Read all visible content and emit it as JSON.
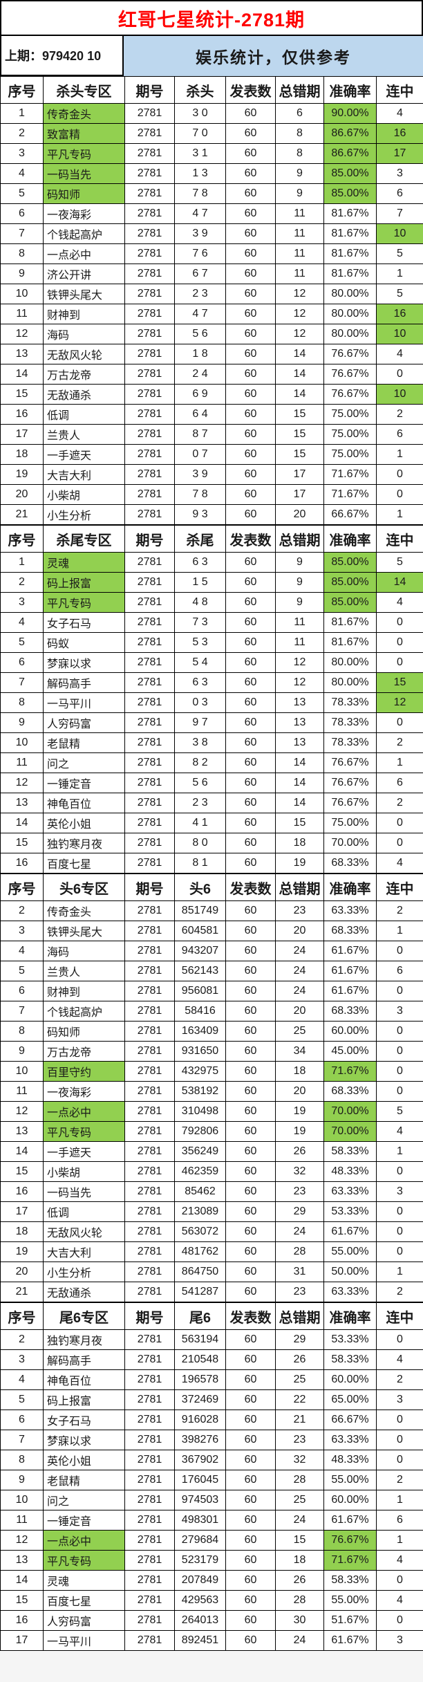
{
  "title": "红哥七星统计-2781期",
  "subheader": {
    "last_period": "上期：979420 10",
    "notice": "娱乐统计，仅供参考"
  },
  "colors": {
    "title_red": "#ff0000",
    "notice_blue": "#bdd7ee",
    "highlight_green": "#92d050",
    "border_black": "#000000"
  },
  "row_flags_legend": "flags string in row index 8: n = zone name cell green, a = accuracy cell green, s = streak cell green",
  "sections": [
    {
      "zone": "杀头专区",
      "headers": [
        "序号",
        "杀头专区",
        "期号",
        "杀头",
        "发表数",
        "总错期",
        "准确率",
        "连中"
      ],
      "rows": [
        [
          "1",
          "传奇金头",
          "2781",
          "3 0",
          "60",
          "6",
          "90.00%",
          "4",
          "na"
        ],
        [
          "2",
          "致富精",
          "2781",
          "7 0",
          "60",
          "8",
          "86.67%",
          "16",
          "nas"
        ],
        [
          "3",
          "平凡专码",
          "2781",
          "3 1",
          "60",
          "8",
          "86.67%",
          "17",
          "nas"
        ],
        [
          "4",
          "一码当先",
          "2781",
          "1 3",
          "60",
          "9",
          "85.00%",
          "3",
          "na"
        ],
        [
          "5",
          "码知师",
          "2781",
          "7 8",
          "60",
          "9",
          "85.00%",
          "6",
          "na"
        ],
        [
          "6",
          "一夜海彩",
          "2781",
          "4 7",
          "60",
          "11",
          "81.67%",
          "7",
          ""
        ],
        [
          "7",
          "个钱起高炉",
          "2781",
          "3 9",
          "60",
          "11",
          "81.67%",
          "10",
          "s"
        ],
        [
          "8",
          "一点必中",
          "2781",
          "7 6",
          "60",
          "11",
          "81.67%",
          "5",
          ""
        ],
        [
          "9",
          "济公开讲",
          "2781",
          "6 7",
          "60",
          "11",
          "81.67%",
          "1",
          ""
        ],
        [
          "10",
          "铁钾头尾大",
          "2781",
          "2 3",
          "60",
          "12",
          "80.00%",
          "5",
          ""
        ],
        [
          "11",
          "财神到",
          "2781",
          "4 7",
          "60",
          "12",
          "80.00%",
          "16",
          "s"
        ],
        [
          "12",
          "海码",
          "2781",
          "5 6",
          "60",
          "12",
          "80.00%",
          "10",
          "s"
        ],
        [
          "13",
          "无敌风火轮",
          "2781",
          "1 8",
          "60",
          "14",
          "76.67%",
          "4",
          ""
        ],
        [
          "14",
          "万古龙帝",
          "2781",
          "2 4",
          "60",
          "14",
          "76.67%",
          "0",
          ""
        ],
        [
          "15",
          "无敌通杀",
          "2781",
          "6 9",
          "60",
          "14",
          "76.67%",
          "10",
          "s"
        ],
        [
          "16",
          "低调",
          "2781",
          "6 4",
          "60",
          "15",
          "75.00%",
          "2",
          ""
        ],
        [
          "17",
          "兰贵人",
          "2781",
          "8 7",
          "60",
          "15",
          "75.00%",
          "6",
          ""
        ],
        [
          "18",
          "一手遮天",
          "2781",
          "0 7",
          "60",
          "15",
          "75.00%",
          "1",
          ""
        ],
        [
          "19",
          "大吉大利",
          "2781",
          "3 9",
          "60",
          "17",
          "71.67%",
          "0",
          ""
        ],
        [
          "20",
          "小柴胡",
          "2781",
          "7 8",
          "60",
          "17",
          "71.67%",
          "0",
          ""
        ],
        [
          "21",
          "小生分析",
          "2781",
          "9 3",
          "60",
          "20",
          "66.67%",
          "1",
          ""
        ]
      ]
    },
    {
      "zone": "杀尾专区",
      "headers": [
        "序号",
        "杀尾专区",
        "期号",
        "杀尾",
        "发表数",
        "总错期",
        "准确率",
        "连中"
      ],
      "rows": [
        [
          "1",
          "灵魂",
          "2781",
          "6 3",
          "60",
          "9",
          "85.00%",
          "5",
          "na"
        ],
        [
          "2",
          "码上报富",
          "2781",
          "1 5",
          "60",
          "9",
          "85.00%",
          "14",
          "nas"
        ],
        [
          "3",
          "平凡专码",
          "2781",
          "4 8",
          "60",
          "9",
          "85.00%",
          "4",
          "na"
        ],
        [
          "4",
          "女子石马",
          "2781",
          "7 3",
          "60",
          "11",
          "81.67%",
          "0",
          ""
        ],
        [
          "5",
          "码蚁",
          "2781",
          "5 3",
          "60",
          "11",
          "81.67%",
          "0",
          ""
        ],
        [
          "6",
          "梦寐以求",
          "2781",
          "5 4",
          "60",
          "12",
          "80.00%",
          "0",
          ""
        ],
        [
          "7",
          "解码高手",
          "2781",
          "6 3",
          "60",
          "12",
          "80.00%",
          "15",
          "s"
        ],
        [
          "8",
          "一马平川",
          "2781",
          "0 3",
          "60",
          "13",
          "78.33%",
          "12",
          "s"
        ],
        [
          "9",
          "人穷码富",
          "2781",
          "9 7",
          "60",
          "13",
          "78.33%",
          "0",
          ""
        ],
        [
          "10",
          "老鼠精",
          "2781",
          "3 8",
          "60",
          "13",
          "78.33%",
          "2",
          ""
        ],
        [
          "11",
          "问之",
          "2781",
          "8 2",
          "60",
          "14",
          "76.67%",
          "1",
          ""
        ],
        [
          "12",
          "一锤定音",
          "2781",
          "5 6",
          "60",
          "14",
          "76.67%",
          "6",
          ""
        ],
        [
          "13",
          "神龟百位",
          "2781",
          "2 3",
          "60",
          "14",
          "76.67%",
          "2",
          ""
        ],
        [
          "14",
          "英伦小姐",
          "2781",
          "4 1",
          "60",
          "15",
          "75.00%",
          "0",
          ""
        ],
        [
          "15",
          "独钓寒月夜",
          "2781",
          "8 0",
          "60",
          "18",
          "70.00%",
          "0",
          ""
        ],
        [
          "16",
          "百度七星",
          "2781",
          "8 1",
          "60",
          "19",
          "68.33%",
          "4",
          ""
        ]
      ]
    },
    {
      "zone": "头6专区",
      "headers": [
        "序号",
        "头6专区",
        "期号",
        "头6",
        "发表数",
        "总错期",
        "准确率",
        "连中"
      ],
      "rows": [
        [
          "2",
          "传奇金头",
          "2781",
          "851749",
          "60",
          "23",
          "63.33%",
          "2",
          ""
        ],
        [
          "3",
          "铁钾头尾大",
          "2781",
          "604581",
          "60",
          "20",
          "68.33%",
          "1",
          ""
        ],
        [
          "4",
          "海码",
          "2781",
          "943207",
          "60",
          "24",
          "61.67%",
          "0",
          ""
        ],
        [
          "5",
          "兰贵人",
          "2781",
          "562143",
          "60",
          "24",
          "61.67%",
          "6",
          ""
        ],
        [
          "6",
          "财神到",
          "2781",
          "956081",
          "60",
          "24",
          "61.67%",
          "0",
          ""
        ],
        [
          "7",
          "个钱起高炉",
          "2781",
          "58416",
          "60",
          "20",
          "68.33%",
          "3",
          ""
        ],
        [
          "8",
          "码知师",
          "2781",
          "163409",
          "60",
          "25",
          "60.00%",
          "0",
          ""
        ],
        [
          "9",
          "万古龙帝",
          "2781",
          "931650",
          "60",
          "34",
          "45.00%",
          "0",
          ""
        ],
        [
          "10",
          "百里守约",
          "2781",
          "432975",
          "60",
          "18",
          "71.67%",
          "0",
          "na"
        ],
        [
          "11",
          "一夜海彩",
          "2781",
          "538192",
          "60",
          "20",
          "68.33%",
          "0",
          ""
        ],
        [
          "12",
          "一点必中",
          "2781",
          "310498",
          "60",
          "19",
          "70.00%",
          "5",
          "na"
        ],
        [
          "13",
          "平凡专码",
          "2781",
          "792806",
          "60",
          "19",
          "70.00%",
          "4",
          "na"
        ],
        [
          "14",
          "一手遮天",
          "2781",
          "356249",
          "60",
          "26",
          "58.33%",
          "1",
          ""
        ],
        [
          "15",
          "小柴胡",
          "2781",
          "462359",
          "60",
          "32",
          "48.33%",
          "0",
          ""
        ],
        [
          "16",
          "一码当先",
          "2781",
          "85462",
          "60",
          "23",
          "63.33%",
          "3",
          ""
        ],
        [
          "17",
          "低调",
          "2781",
          "213089",
          "60",
          "29",
          "53.33%",
          "0",
          ""
        ],
        [
          "18",
          "无敌风火轮",
          "2781",
          "563072",
          "60",
          "24",
          "61.67%",
          "0",
          ""
        ],
        [
          "19",
          "大吉大利",
          "2781",
          "481762",
          "60",
          "28",
          "55.00%",
          "0",
          ""
        ],
        [
          "20",
          "小生分析",
          "2781",
          "864750",
          "60",
          "31",
          "50.00%",
          "1",
          ""
        ],
        [
          "21",
          "无敌通杀",
          "2781",
          "541287",
          "60",
          "23",
          "63.33%",
          "2",
          ""
        ]
      ]
    },
    {
      "zone": "尾6专区",
      "headers": [
        "序号",
        "尾6专区",
        "期号",
        "尾6",
        "发表数",
        "总错期",
        "准确率",
        "连中"
      ],
      "rows": [
        [
          "2",
          "独钓寒月夜",
          "2781",
          "563194",
          "60",
          "29",
          "53.33%",
          "0",
          ""
        ],
        [
          "3",
          "解码高手",
          "2781",
          "210548",
          "60",
          "26",
          "58.33%",
          "4",
          ""
        ],
        [
          "4",
          "神龟百位",
          "2781",
          "196578",
          "60",
          "25",
          "60.00%",
          "2",
          ""
        ],
        [
          "5",
          "码上报富",
          "2781",
          "372469",
          "60",
          "22",
          "65.00%",
          "3",
          ""
        ],
        [
          "6",
          "女子石马",
          "2781",
          "916028",
          "60",
          "21",
          "66.67%",
          "0",
          ""
        ],
        [
          "7",
          "梦寐以求",
          "2781",
          "398276",
          "60",
          "23",
          "63.33%",
          "0",
          ""
        ],
        [
          "8",
          "英伦小姐",
          "2781",
          "367902",
          "60",
          "32",
          "48.33%",
          "0",
          ""
        ],
        [
          "9",
          "老鼠精",
          "2781",
          "176045",
          "60",
          "28",
          "55.00%",
          "2",
          ""
        ],
        [
          "10",
          "问之",
          "2781",
          "974503",
          "60",
          "25",
          "60.00%",
          "1",
          ""
        ],
        [
          "11",
          "一锤定音",
          "2781",
          "498301",
          "60",
          "24",
          "61.67%",
          "6",
          ""
        ],
        [
          "12",
          "一点必中",
          "2781",
          "279684",
          "60",
          "15",
          "76.67%",
          "1",
          "na"
        ],
        [
          "13",
          "平凡专码",
          "2781",
          "523179",
          "60",
          "18",
          "71.67%",
          "4",
          "na"
        ],
        [
          "14",
          "灵魂",
          "2781",
          "207849",
          "60",
          "26",
          "58.33%",
          "0",
          ""
        ],
        [
          "15",
          "百度七星",
          "2781",
          "429563",
          "60",
          "28",
          "55.00%",
          "4",
          ""
        ],
        [
          "16",
          "人穷码富",
          "2781",
          "264013",
          "60",
          "30",
          "51.67%",
          "0",
          ""
        ],
        [
          "17",
          "一马平川",
          "2781",
          "892451",
          "60",
          "24",
          "61.67%",
          "3",
          ""
        ]
      ]
    }
  ]
}
